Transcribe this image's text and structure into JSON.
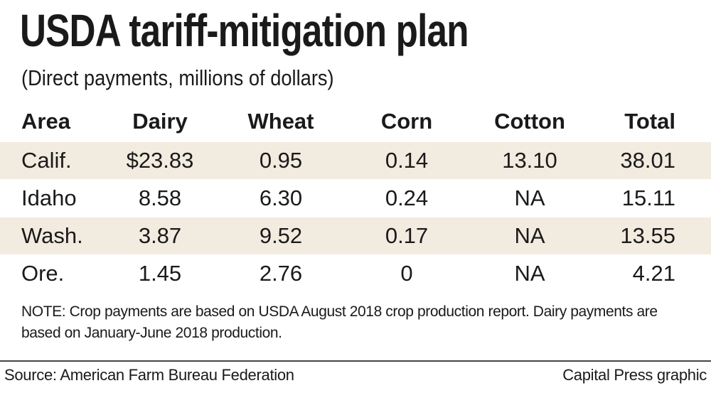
{
  "header": {
    "title": "USDA tariff-mitigation plan",
    "subtitle": "(Direct payments, millions of dollars)"
  },
  "table": {
    "columns": [
      "Area",
      "Dairy",
      "Wheat",
      "Corn",
      "Cotton",
      "Total"
    ],
    "rows": [
      [
        "Calif.",
        "$23.83",
        "0.95",
        "0.14",
        "13.10",
        "38.01"
      ],
      [
        "Idaho",
        "8.58",
        "6.30",
        "0.24",
        "NA",
        "15.11"
      ],
      [
        "Wash.",
        "3.87",
        "9.52",
        "0.17",
        "NA",
        "13.55"
      ],
      [
        "Ore.",
        "1.45",
        "2.76",
        "0",
        "NA",
        "4.21"
      ]
    ]
  },
  "note": "NOTE: Crop payments are based on USDA August 2018 crop production report. Dairy payments are based on January-June 2018 production.",
  "footer": {
    "source": "Source: American Farm Bureau Federation",
    "credit": "Capital Press graphic"
  }
}
